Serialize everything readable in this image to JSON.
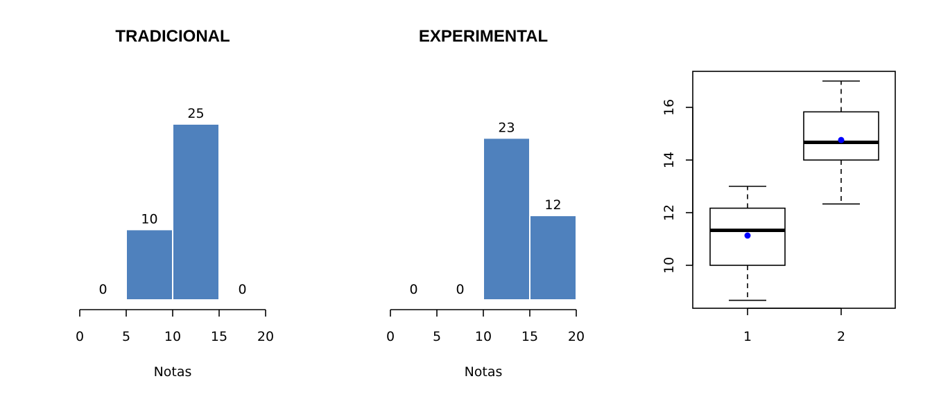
{
  "chart_data": [
    {
      "type": "bar",
      "title": "TRADICIONAL",
      "xlabel": "Notas",
      "ylabel": "",
      "bins": [
        [
          0,
          5
        ],
        [
          5,
          10
        ],
        [
          10,
          15
        ],
        [
          15,
          20
        ]
      ],
      "values": [
        0,
        10,
        25,
        0
      ],
      "xticks": [
        0,
        5,
        10,
        15,
        20
      ],
      "xlim": [
        0,
        20
      ],
      "bar_color": "#4f81bd"
    },
    {
      "type": "bar",
      "title": "EXPERIMENTAL",
      "xlabel": "Notas",
      "ylabel": "",
      "bins": [
        [
          0,
          5
        ],
        [
          5,
          10
        ],
        [
          10,
          15
        ],
        [
          15,
          20
        ]
      ],
      "values": [
        0,
        0,
        23,
        12
      ],
      "xticks": [
        0,
        5,
        10,
        15,
        20
      ],
      "xlim": [
        0,
        20
      ],
      "bar_color": "#4f81bd"
    },
    {
      "type": "boxplot",
      "title": "",
      "xlabel": "",
      "ylabel": "",
      "categories": [
        "1",
        "2"
      ],
      "boxes": [
        {
          "name": "1",
          "min": 8.67,
          "q1": 10.0,
          "median": 11.33,
          "q3": 12.17,
          "max": 13.0,
          "mean": 11.13
        },
        {
          "name": "2",
          "min": 12.33,
          "q1": 14.0,
          "median": 14.67,
          "q3": 15.83,
          "max": 17.0,
          "mean": 14.76
        }
      ],
      "yticks": [
        10,
        12,
        14,
        16
      ],
      "ylim": [
        8.4,
        17.3
      ],
      "mean_color": "#0000ff"
    }
  ]
}
